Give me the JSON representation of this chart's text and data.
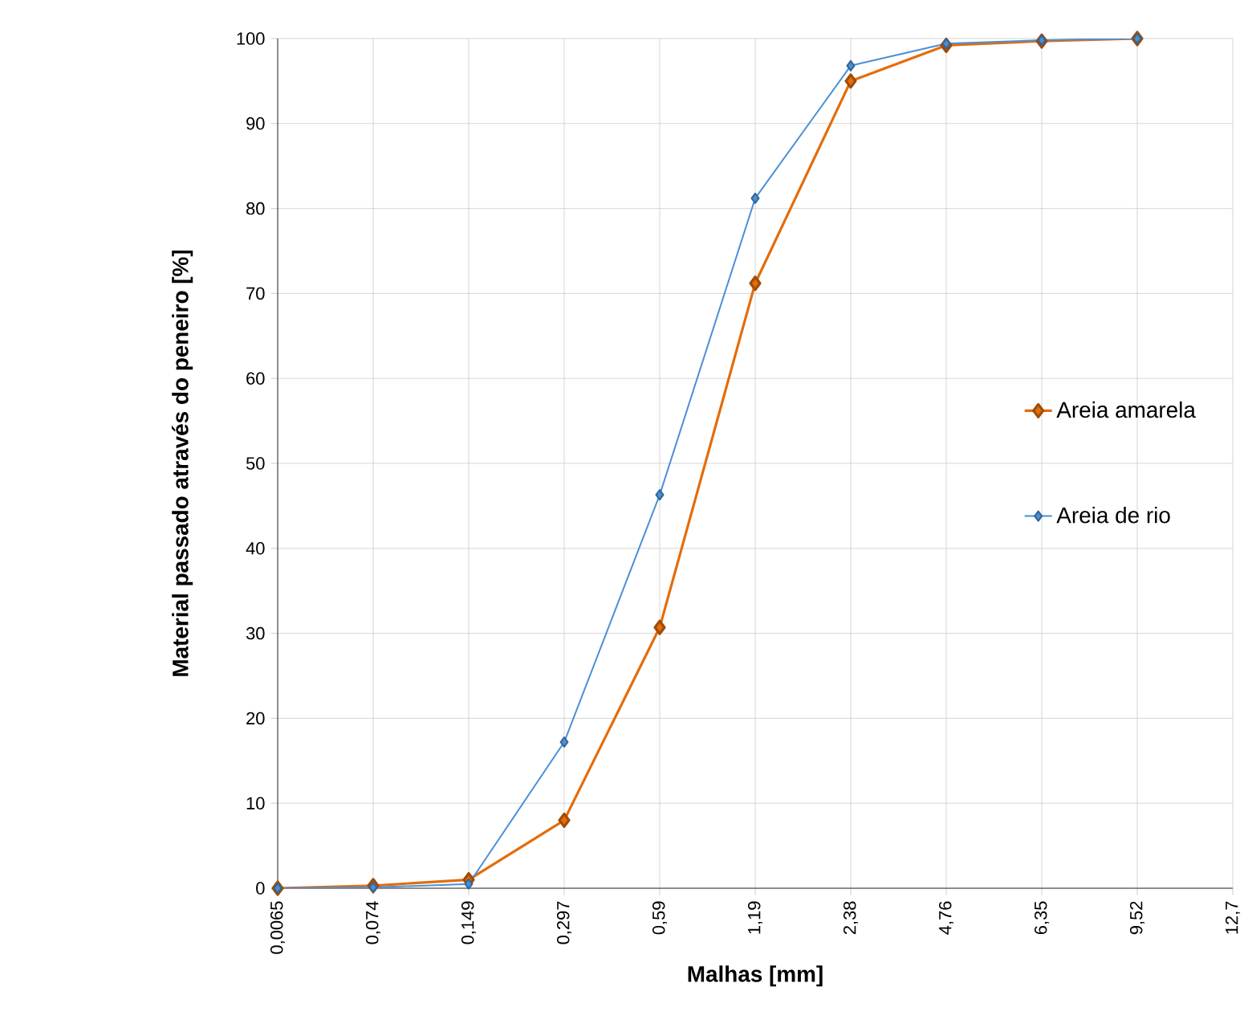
{
  "chart_data": {
    "type": "line",
    "xlabel": "Malhas [mm]",
    "ylabel": "Material passado através do peneiro [%]",
    "categories": [
      "0,0065",
      "0,074",
      "0,149",
      "0,297",
      "0,59",
      "1,19",
      "2,38",
      "4,76",
      "6,35",
      "9,52",
      "12,7"
    ],
    "series": [
      {
        "name": "Areia amarela",
        "color": "#e46c0a",
        "values": [
          0,
          0.3,
          1,
          8,
          30.7,
          71.2,
          95,
          99.2,
          99.7,
          100,
          null
        ]
      },
      {
        "name": "Areia de  rio",
        "color": "#4a8fd6",
        "values": [
          0,
          0.1,
          0.5,
          17.2,
          46.3,
          81.2,
          96.8,
          99.4,
          99.8,
          100,
          null
        ]
      }
    ],
    "ylim": [
      0,
      100
    ],
    "yticks": [
      0,
      10,
      20,
      30,
      40,
      50,
      60,
      70,
      80,
      90,
      100
    ],
    "grid": true,
    "legend": "right",
    "marker": "diamond",
    "line_style": "solid"
  }
}
